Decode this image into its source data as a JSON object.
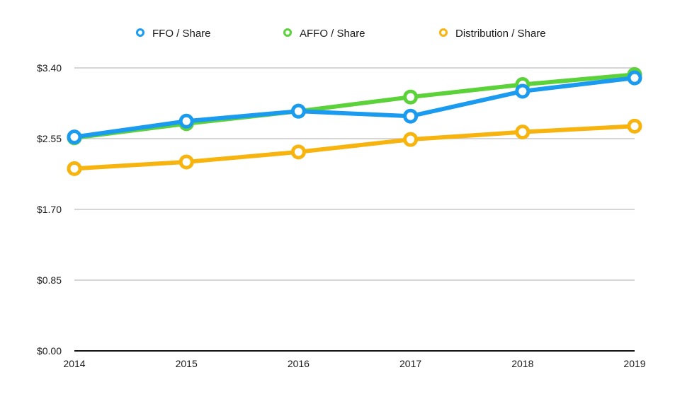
{
  "chart_data": {
    "type": "line",
    "title": "",
    "xlabel": "",
    "ylabel": "",
    "categories": [
      "2014",
      "2015",
      "2016",
      "2017",
      "2018",
      "2019"
    ],
    "ylim": [
      0,
      3.4
    ],
    "yticks": [
      0,
      0.85,
      1.7,
      2.55,
      3.4
    ],
    "ytick_labels": [
      "$0.00",
      "$0.85",
      "$1.70",
      "$2.55",
      "$3.40"
    ],
    "grid": true,
    "legend_position": "top-center",
    "series": [
      {
        "name": "FFO / Share",
        "color": "#1a9bf0",
        "values": [
          2.57,
          2.76,
          2.88,
          2.82,
          3.12,
          3.28
        ]
      },
      {
        "name": "AFFO / Share",
        "color": "#5bd13a",
        "values": [
          2.56,
          2.73,
          2.88,
          3.05,
          3.2,
          3.32
        ]
      },
      {
        "name": "Distribution / Share",
        "color": "#f7b30e",
        "values": [
          2.19,
          2.27,
          2.39,
          2.54,
          2.63,
          2.7
        ]
      }
    ]
  }
}
